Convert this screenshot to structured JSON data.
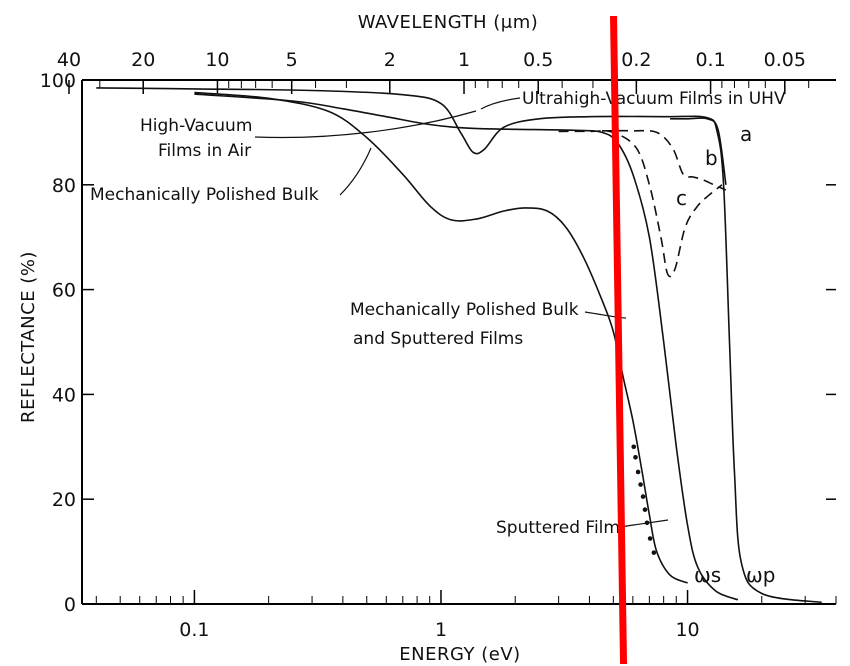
{
  "chart_data": {
    "type": "line",
    "title": "",
    "xlabel": "ENERGY (eV)",
    "ylabel": "REFLECTANCE (%)",
    "x2label": "WAVELENGTH (μm)",
    "xscale": "log",
    "xlim": [
      0.035,
      40
    ],
    "ylim": [
      0,
      100
    ],
    "xticks": [
      {
        "value": 0.1,
        "label": "0.1"
      },
      {
        "value": 1,
        "label": "1"
      },
      {
        "value": 10,
        "label": "10"
      }
    ],
    "yticks": [
      {
        "value": 0,
        "label": "0"
      },
      {
        "value": 20,
        "label": "20"
      },
      {
        "value": 40,
        "label": "40"
      },
      {
        "value": 60,
        "label": "60"
      },
      {
        "value": 80,
        "label": "80"
      },
      {
        "value": 100,
        "label": "100"
      }
    ],
    "x2ticks": [
      {
        "value": 40,
        "label": "40"
      },
      {
        "value": 20,
        "label": "20"
      },
      {
        "value": 10,
        "label": "10"
      },
      {
        "value": 5,
        "label": "5"
      },
      {
        "value": 2,
        "label": "2"
      },
      {
        "value": 1,
        "label": "1"
      },
      {
        "value": 0.5,
        "label": "0.5"
      },
      {
        "value": 0.2,
        "label": "0.2"
      },
      {
        "value": 0.1,
        "label": "0.1"
      },
      {
        "value": 0.05,
        "label": "0.05"
      }
    ],
    "series": [
      {
        "points": [
          [
            0.04,
            98.5
          ],
          [
            0.1,
            98.3
          ],
          [
            0.3,
            98
          ],
          [
            0.7,
            97.2
          ],
          [
            1.0,
            95.5
          ],
          [
            1.2,
            90
          ],
          [
            1.35,
            86.2
          ],
          [
            1.5,
            86.8
          ],
          [
            1.8,
            91
          ],
          [
            2.5,
            92.6
          ],
          [
            4,
            93
          ],
          [
            8,
            93
          ],
          [
            12,
            92.8
          ],
          [
            13.2,
            90
          ],
          [
            14,
            80
          ],
          [
            14.8,
            50
          ],
          [
            15.5,
            25
          ],
          [
            16.5,
            8
          ],
          [
            20,
            2
          ],
          [
            35,
            0.3
          ]
        ]
      },
      {
        "points": [
          [
            0.1,
            97.3
          ],
          [
            0.25,
            96
          ],
          [
            0.4,
            94.5
          ],
          [
            0.6,
            93
          ],
          [
            0.9,
            91.5
          ],
          [
            1.3,
            90.8
          ],
          [
            2,
            90.6
          ],
          [
            3.5,
            90.4
          ],
          [
            4.5,
            90
          ],
          [
            5.2,
            88
          ],
          [
            6,
            82
          ],
          [
            7,
            70
          ],
          [
            8,
            50
          ],
          [
            9,
            30
          ],
          [
            10,
            15
          ],
          [
            11,
            7
          ],
          [
            13,
            2.5
          ],
          [
            16,
            0.8
          ]
        ]
      },
      {
        "points": [
          [
            0.1,
            97.6
          ],
          [
            0.2,
            96.5
          ],
          [
            0.35,
            94
          ],
          [
            0.5,
            89
          ],
          [
            0.7,
            82
          ],
          [
            0.9,
            76
          ],
          [
            1.1,
            73.3
          ],
          [
            1.4,
            73.5
          ],
          [
            1.8,
            75
          ],
          [
            2.2,
            75.6
          ],
          [
            2.7,
            75
          ],
          [
            3.2,
            72
          ],
          [
            3.8,
            66
          ],
          [
            4.5,
            58
          ],
          [
            5,
            52
          ],
          [
            5.5,
            43
          ],
          [
            6,
            35
          ],
          [
            6.5,
            26
          ],
          [
            7,
            17
          ],
          [
            7.5,
            10
          ],
          [
            8.5,
            5.5
          ],
          [
            10,
            4
          ]
        ]
      },
      {
        "name": "a",
        "points": [
          [
            8.5,
            92.6
          ],
          [
            10,
            92.6
          ],
          [
            12,
            92.6
          ],
          [
            13.3,
            90.5
          ],
          [
            14.3,
            80
          ]
        ]
      },
      {
        "name": "b",
        "points": [
          [
            4.5,
            90.3
          ],
          [
            6,
            90.3
          ],
          [
            7.5,
            90
          ],
          [
            8.7,
            87
          ],
          [
            9.6,
            82
          ],
          [
            10.5,
            81.5
          ],
          [
            11.5,
            81
          ],
          [
            12.8,
            80
          ],
          [
            14.3,
            79
          ]
        ]
      },
      {
        "name": "c",
        "points": [
          [
            3,
            90.2
          ],
          [
            4,
            90.2
          ],
          [
            5,
            90
          ],
          [
            6.2,
            87
          ],
          [
            7,
            80
          ],
          [
            7.8,
            70
          ],
          [
            8.3,
            63
          ],
          [
            8.9,
            64
          ],
          [
            9.8,
            72
          ],
          [
            11,
            76
          ],
          [
            12.2,
            78
          ],
          [
            13.8,
            80
          ]
        ]
      }
    ],
    "sputtered_film_points": [
      [
        6.05,
        30
      ],
      [
        6.15,
        28
      ],
      [
        6.3,
        25.2
      ],
      [
        6.45,
        22.8
      ],
      [
        6.6,
        20.5
      ],
      [
        6.72,
        18
      ],
      [
        6.85,
        15.5
      ],
      [
        7.05,
        12.5
      ],
      [
        7.3,
        9.8
      ]
    ],
    "annotations": [
      {
        "text": "Ultrahigh-Vacuum Films in UHV"
      },
      {
        "text": "High-Vacuum"
      },
      {
        "text": "Films in Air"
      },
      {
        "text": "Mechanically Polished Bulk"
      },
      {
        "text": "Mechanically Polished Bulk"
      },
      {
        "text": "and Sputtered Films"
      },
      {
        "text": "Sputtered Film"
      },
      {
        "text": "a"
      },
      {
        "text": "b"
      },
      {
        "text": "c"
      },
      {
        "text": "ωs"
      },
      {
        "text": "ωp"
      }
    ],
    "marker": {
      "energy_ev": 5.2,
      "color": "#ff0000"
    }
  }
}
